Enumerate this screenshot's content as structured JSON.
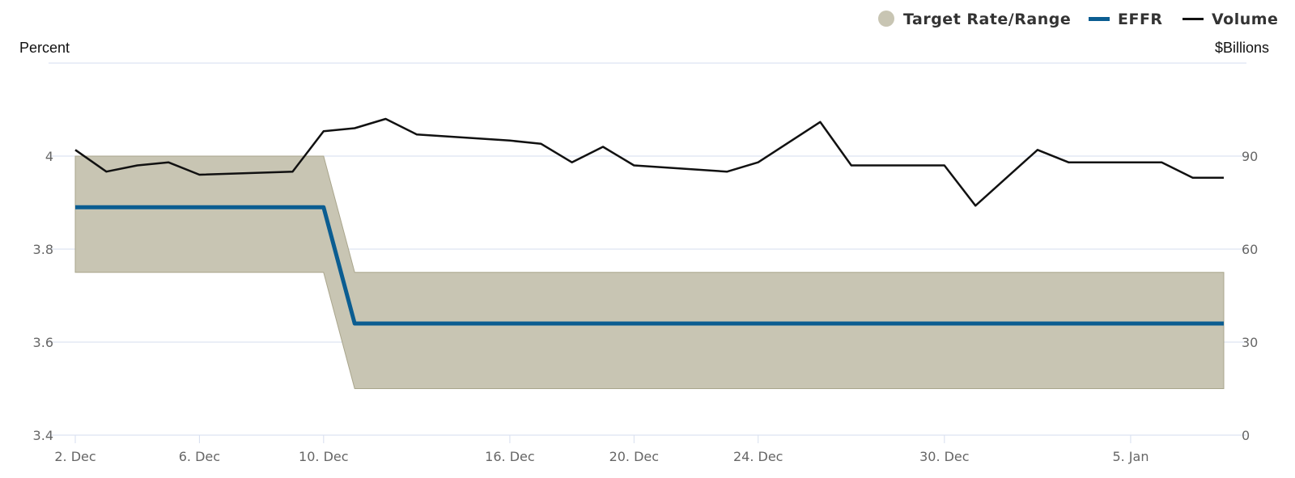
{
  "legend": {
    "target": "Target Rate/Range",
    "effr": "EFFR",
    "volume": "Volume"
  },
  "axes": {
    "left_title": "Percent",
    "right_title": "$Billions"
  },
  "colors": {
    "target_fill": "#c8c5b3",
    "target_edge": "#a9a58c",
    "effr": "#0b5d91",
    "volume": "#111111",
    "grid": "#d6deef"
  },
  "chart_data": {
    "type": "line",
    "x_dates": [
      "2024-12-02",
      "2024-12-03",
      "2024-12-04",
      "2024-12-05",
      "2024-12-06",
      "2024-12-09",
      "2024-12-10",
      "2024-12-11",
      "2024-12-12",
      "2024-12-13",
      "2024-12-16",
      "2024-12-17",
      "2024-12-18",
      "2024-12-19",
      "2024-12-20",
      "2024-12-23",
      "2024-12-24",
      "2024-12-26",
      "2024-12-27",
      "2024-12-30",
      "2024-12-31",
      "2025-01-02",
      "2025-01-03",
      "2025-01-06",
      "2025-01-07",
      "2025-01-08"
    ],
    "x_ticks": [
      {
        "label": "2. Dec",
        "date": "2024-12-02"
      },
      {
        "label": "6. Dec",
        "date": "2024-12-06"
      },
      {
        "label": "10. Dec",
        "date": "2024-12-10"
      },
      {
        "label": "16. Dec",
        "date": "2024-12-16"
      },
      {
        "label": "20. Dec",
        "date": "2024-12-20"
      },
      {
        "label": "24. Dec",
        "date": "2024-12-24"
      },
      {
        "label": "30. Dec",
        "date": "2024-12-30"
      },
      {
        "label": "5. Jan",
        "date": "2025-01-05"
      }
    ],
    "left_axis": {
      "ylim": [
        3.4,
        4.2
      ],
      "ticks": [
        "3.4",
        "3.6",
        "3.8",
        "4"
      ]
    },
    "right_axis": {
      "ylim": [
        0,
        120
      ],
      "ticks": [
        "0",
        "30",
        "60",
        "90"
      ]
    },
    "series": [
      {
        "name": "Target Rate/Range",
        "type": "arearange",
        "axis": "left",
        "low": [
          3.75,
          3.75,
          3.75,
          3.75,
          3.75,
          3.75,
          3.75,
          3.5,
          3.5,
          3.5,
          3.5,
          3.5,
          3.5,
          3.5,
          3.5,
          3.5,
          3.5,
          3.5,
          3.5,
          3.5,
          3.5,
          3.5,
          3.5,
          3.5,
          3.5,
          3.5
        ],
        "high": [
          4.0,
          4.0,
          4.0,
          4.0,
          4.0,
          4.0,
          4.0,
          3.75,
          3.75,
          3.75,
          3.75,
          3.75,
          3.75,
          3.75,
          3.75,
          3.75,
          3.75,
          3.75,
          3.75,
          3.75,
          3.75,
          3.75,
          3.75,
          3.75,
          3.75,
          3.75
        ]
      },
      {
        "name": "EFFR",
        "type": "line",
        "axis": "left",
        "values": [
          3.89,
          3.89,
          3.89,
          3.89,
          3.89,
          3.89,
          3.89,
          3.64,
          3.64,
          3.64,
          3.64,
          3.64,
          3.64,
          3.64,
          3.64,
          3.64,
          3.64,
          3.64,
          3.64,
          3.64,
          3.64,
          3.64,
          3.64,
          3.64,
          3.64,
          3.64
        ]
      },
      {
        "name": "Volume",
        "type": "line",
        "axis": "right",
        "values": [
          92,
          85,
          87,
          88,
          84,
          85,
          98,
          99,
          102,
          97,
          95,
          94,
          88,
          93,
          87,
          85,
          88,
          101,
          87,
          87,
          74,
          92,
          88,
          88,
          83,
          83
        ]
      }
    ],
    "grid": true,
    "legend_position": "top-right"
  }
}
